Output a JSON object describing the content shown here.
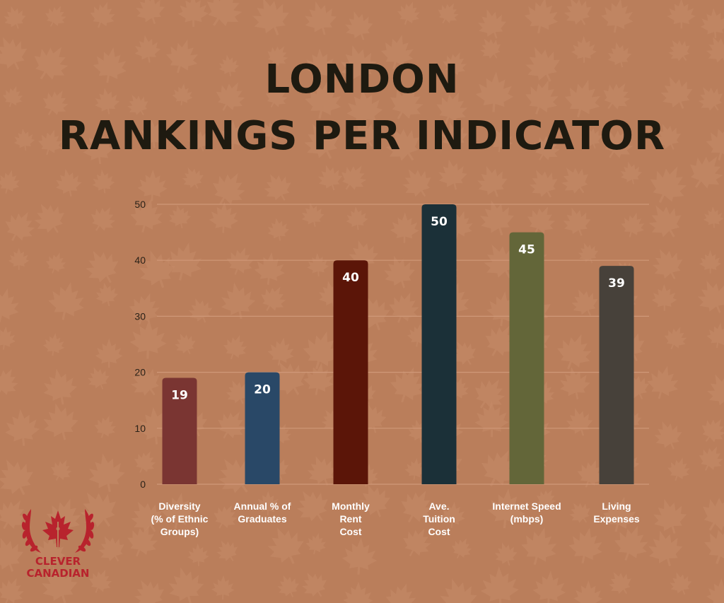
{
  "title": {
    "line1": "LONDON",
    "line2": "RANKINGS PER INDICATOR"
  },
  "chart_data": {
    "type": "bar",
    "categories": [
      [
        "Diversity",
        "(% of Ethnic",
        "Groups)"
      ],
      [
        "Annual % of",
        "Graduates"
      ],
      [
        "Monthly",
        "Rent",
        "Cost"
      ],
      [
        "Ave.",
        "Tuition",
        "Cost"
      ],
      [
        "Internet Speed",
        "(mbps)"
      ],
      [
        "Living",
        "Expenses"
      ]
    ],
    "values": [
      19,
      20,
      40,
      50,
      45,
      39
    ],
    "colors": [
      "#7a3532",
      "#294867",
      "#5b1508",
      "#1b3038",
      "#636639",
      "#47413a"
    ],
    "ylim": [
      0,
      50
    ],
    "yticks": [
      0,
      10,
      20,
      30,
      40,
      50
    ],
    "grid": true,
    "data_labels": true,
    "xlabel": "",
    "ylabel": ""
  },
  "logo": {
    "line1": "CLEVER",
    "line2": "CANADIAN",
    "color": "#b8232d"
  },
  "colors": {
    "background": "#ba7e5b",
    "title_text": "#1e1a10",
    "tick_text": "#2b2218",
    "label_text": "#ffffff",
    "gridline": "#cf9878"
  }
}
